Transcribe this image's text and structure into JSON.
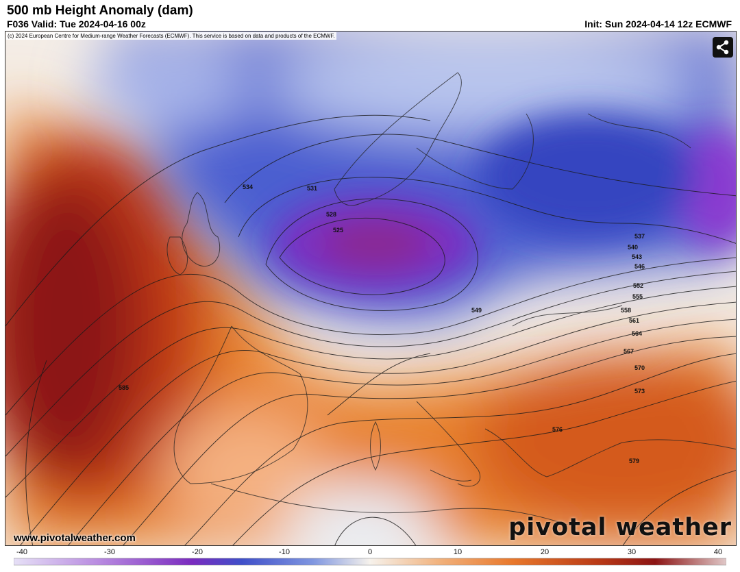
{
  "header": {
    "title": "500 mb Height Anomaly (dam)",
    "valid": "F036 Valid: Tue 2024-04-16 00z",
    "init": "Init: Sun 2024-04-14 12z ECMWF"
  },
  "map": {
    "credit": "(c) 2024 European Centre for Medium-range Weather Forecasts (ECMWF). This service is based on data and products of the ECMWF.",
    "share_icon": "share-icon",
    "site_url": "www.pivotalweather.com",
    "brand": "pivotal weather",
    "contour_labels": [
      "525",
      "528",
      "531",
      "534",
      "537",
      "540",
      "543",
      "546",
      "549",
      "552",
      "555",
      "558",
      "561",
      "564",
      "567",
      "570",
      "573",
      "576",
      "579",
      "585"
    ],
    "colors": {
      "negative_strong": "#7a2bbf",
      "negative": "#3f4fc9",
      "neutral": "#f6f2ec",
      "positive": "#e8782c",
      "positive_strong": "#8c1414"
    }
  },
  "colorbar": {
    "ticks": [
      "-40",
      "-30",
      "-20",
      "-10",
      "0",
      "10",
      "20",
      "30",
      "40"
    ],
    "range": [
      -40,
      40
    ]
  }
}
